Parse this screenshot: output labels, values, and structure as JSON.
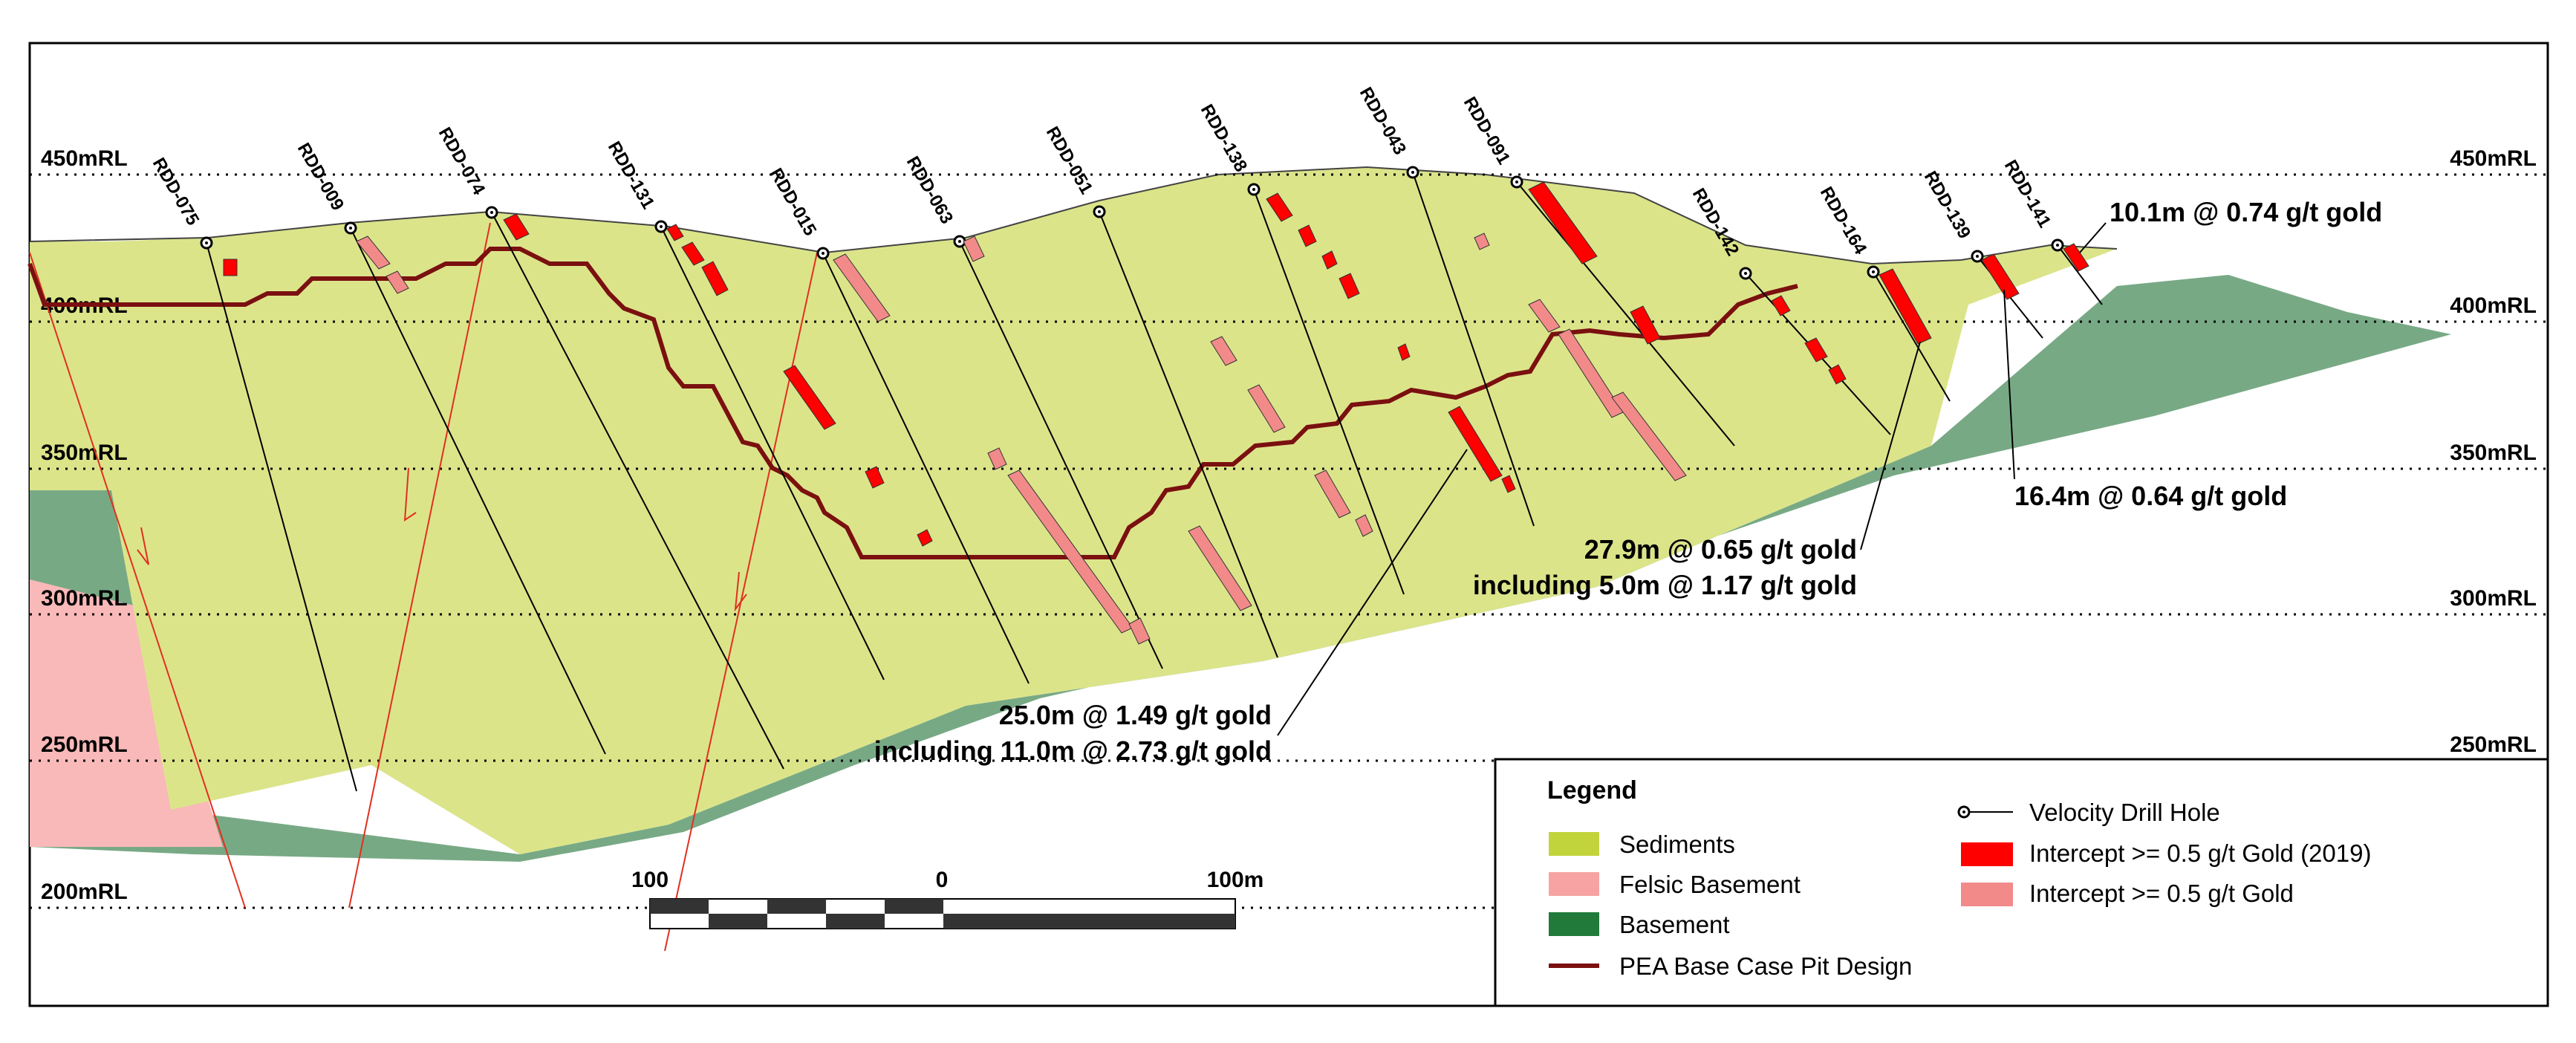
{
  "levels": [
    {
      "label": "450mRL"
    },
    {
      "label": "400mRL"
    },
    {
      "label": "350mRL"
    },
    {
      "label": "300mRL"
    },
    {
      "label": "250mRL"
    },
    {
      "label": "200mRL"
    }
  ],
  "drill_holes": [
    "RDD-075",
    "RDD-009",
    "RDD-074",
    "RDD-131",
    "RDD-015",
    "RDD-063",
    "RDD-051",
    "RDD-138",
    "RDD-043",
    "RDD-091",
    "RDD-142",
    "RDD-164",
    "RDD-139",
    "RDD-141"
  ],
  "annotations": {
    "a1_line1": "10.1m @ 0.74 g/t gold",
    "a2_line1": "16.4m @ 0.64 g/t gold",
    "a3_line1": "27.9m @ 0.65 g/t gold",
    "a3_line2": "including 5.0m @ 1.17 g/t gold",
    "a4_line1": "25.0m @ 1.49 g/t gold",
    "a4_line2": "including 11.0m @ 2.73 g/t gold"
  },
  "scale_bar": {
    "left": "100",
    "mid": "0",
    "right": "100m"
  },
  "legend": {
    "title": "Legend",
    "sediments": "Sediments",
    "felsic": "Felsic Basement",
    "basement": "Basement",
    "pit": "PEA Base Case Pit Design",
    "drillhole": "Velocity Drill Hole",
    "int2019": "Intercept >= 0.5 g/t Gold (2019)",
    "int": "Intercept >= 0.5 g/t Gold"
  },
  "colors": {
    "sediments": "#dce48a",
    "basement": "#78a985",
    "felsic": "#f9b9b9",
    "pit": "#7a1010",
    "intercept_2019": "#ff0000",
    "intercept": "#f28a8a",
    "legend_sediments": "#c2d43c",
    "legend_felsic": "#f7a3a3",
    "legend_basement": "#217a3a"
  }
}
